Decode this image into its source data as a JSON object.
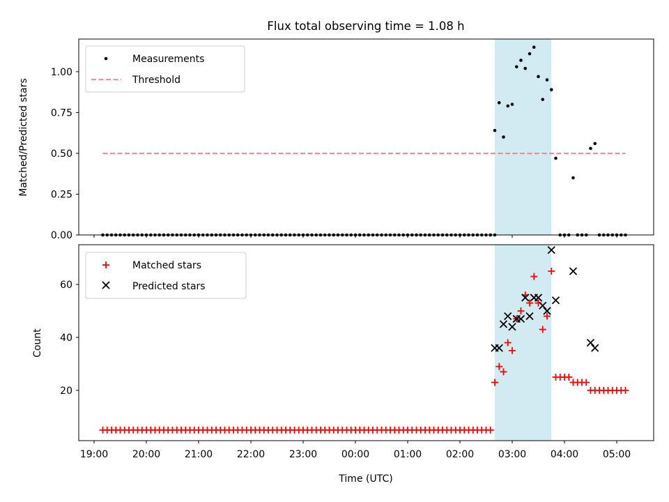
{
  "title": "Flux total observing time = 1.08 h",
  "colors": {
    "measurement": "#000000",
    "threshold": "#ff7f7f",
    "matched": "#ff0000",
    "predicted": "#000000",
    "span": "#add8e6"
  },
  "chart_data": [
    {
      "type": "scatter",
      "ylabel": "Matched/Predicted stars",
      "ylim": [
        0,
        1.2
      ],
      "yticks": [
        "0.00",
        "0.25",
        "0.50",
        "0.75",
        "1.00"
      ],
      "legend_location": "upper-left",
      "shaded_span": [
        "02:40",
        "03:45"
      ],
      "grid": false,
      "series": [
        {
          "name": "Measurements",
          "marker": "dot",
          "x_start": "19:10",
          "x_step_min": 5,
          "values": [
            0,
            0,
            0,
            0,
            0,
            0,
            0,
            0,
            0,
            0,
            0,
            0,
            0,
            0,
            0,
            0,
            0,
            0,
            0,
            0,
            0,
            0,
            0,
            0,
            0,
            0,
            0,
            0,
            0,
            0,
            0,
            0,
            0,
            0,
            0,
            0,
            0,
            0,
            0,
            0,
            0,
            0,
            0,
            0,
            0,
            0,
            0,
            0,
            0,
            0,
            0,
            0,
            0,
            0,
            0,
            0,
            0,
            0,
            0,
            0,
            0,
            0,
            0,
            0,
            0,
            0,
            0,
            0,
            0,
            0,
            0,
            0,
            0,
            0,
            0,
            0,
            0,
            0,
            0,
            0,
            0,
            0,
            0,
            0,
            0,
            0,
            0,
            0,
            0,
            0,
            0
          ]
        },
        {
          "name": "Measurements",
          "marker": "dot",
          "points": [
            [
              "02:40",
              0.64
            ],
            [
              "02:45",
              0.81
            ],
            [
              "02:50",
              0.6
            ],
            [
              "02:55",
              0.79
            ],
            [
              "03:00",
              0.8
            ],
            [
              "03:05",
              1.03
            ],
            [
              "03:10",
              1.07
            ],
            [
              "03:15",
              1.02
            ],
            [
              "03:20",
              1.11
            ],
            [
              "03:25",
              1.15
            ],
            [
              "03:30",
              0.97
            ],
            [
              "03:35",
              0.83
            ],
            [
              "03:40",
              0.95
            ],
            [
              "03:45",
              0.89
            ],
            [
              "03:50",
              0.47
            ],
            [
              "03:55",
              0
            ],
            [
              "04:00",
              0
            ],
            [
              "04:05",
              0
            ],
            [
              "04:10",
              0.35
            ],
            [
              "04:15",
              0
            ],
            [
              "04:20",
              0
            ],
            [
              "04:25",
              0
            ],
            [
              "04:30",
              0.53
            ],
            [
              "04:35",
              0.56
            ],
            [
              "04:40",
              0
            ],
            [
              "04:45",
              0
            ],
            [
              "04:50",
              0
            ],
            [
              "04:55",
              0
            ],
            [
              "05:00",
              0
            ],
            [
              "05:05",
              0
            ],
            [
              "05:10",
              0
            ]
          ]
        },
        {
          "name": "Threshold",
          "style": "dashed",
          "x": [
            "19:10",
            "05:10"
          ],
          "y": [
            0.5,
            0.5
          ]
        }
      ]
    },
    {
      "type": "scatter",
      "ylabel": "Count",
      "xlabel": "Time (UTC)",
      "ylim": [
        1,
        75
      ],
      "yticks": [
        "20",
        "40",
        "60"
      ],
      "xticks": [
        "19:00",
        "20:00",
        "21:00",
        "22:00",
        "23:00",
        "00:00",
        "01:00",
        "02:00",
        "03:00",
        "04:00",
        "05:00"
      ],
      "legend_location": "upper-left",
      "shaded_span": [
        "02:40",
        "03:45"
      ],
      "grid": false,
      "series": [
        {
          "name": "Matched stars",
          "marker": "plus",
          "points": [
            [
              "02:40",
              23
            ],
            [
              "02:45",
              29
            ],
            [
              "02:50",
              27
            ],
            [
              "02:55",
              38
            ],
            [
              "03:00",
              35
            ],
            [
              "03:05",
              47
            ],
            [
              "03:10",
              50
            ],
            [
              "03:15",
              56
            ],
            [
              "03:20",
              53
            ],
            [
              "03:25",
              63
            ],
            [
              "03:30",
              53
            ],
            [
              "03:35",
              43
            ],
            [
              "03:40",
              48
            ],
            [
              "03:45",
              65
            ],
            [
              "03:50",
              25
            ],
            [
              "03:55",
              25
            ],
            [
              "04:00",
              25
            ],
            [
              "04:05",
              25
            ],
            [
              "04:10",
              23
            ],
            [
              "04:15",
              23
            ],
            [
              "04:20",
              23
            ],
            [
              "04:25",
              23
            ],
            [
              "04:30",
              20
            ],
            [
              "04:35",
              20
            ],
            [
              "04:40",
              20
            ],
            [
              "04:45",
              20
            ],
            [
              "04:50",
              20
            ],
            [
              "04:55",
              20
            ],
            [
              "05:00",
              20
            ],
            [
              "05:05",
              20
            ],
            [
              "05:10",
              20
            ]
          ],
          "baseline": {
            "x_start": "19:10",
            "x_end": "02:35",
            "x_step_min": 5,
            "value": 5
          }
        },
        {
          "name": "Predicted stars",
          "marker": "x",
          "points": [
            [
              "02:40",
              36
            ],
            [
              "02:45",
              36
            ],
            [
              "02:50",
              45
            ],
            [
              "02:55",
              48
            ],
            [
              "03:00",
              44
            ],
            [
              "03:05",
              47
            ],
            [
              "03:10",
              47
            ],
            [
              "03:15",
              55
            ],
            [
              "03:20",
              48
            ],
            [
              "03:25",
              55
            ],
            [
              "03:30",
              55
            ],
            [
              "03:35",
              52
            ],
            [
              "03:40",
              50
            ],
            [
              "03:45",
              73
            ],
            [
              "03:50",
              54
            ],
            [
              "04:10",
              65
            ],
            [
              "04:30",
              38
            ],
            [
              "04:35",
              36
            ]
          ]
        }
      ]
    }
  ]
}
